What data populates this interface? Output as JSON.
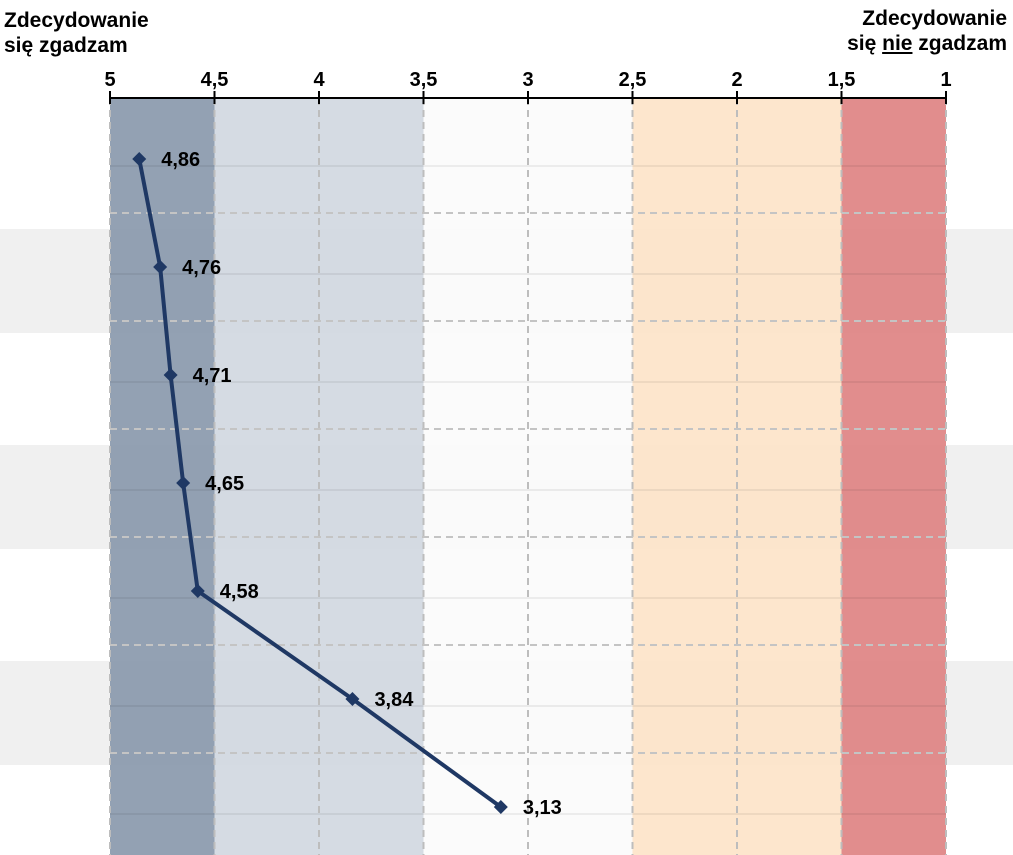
{
  "header": {
    "left_line1": "Zdecydowanie",
    "left_line2": "się zgadzam",
    "right_line1": "Zdecydowanie",
    "right_line2_pre": "się ",
    "right_line2_em": "nie",
    "right_line2_post": " zgadzam"
  },
  "chart_data": {
    "type": "line",
    "orientation": "horizontal",
    "x_axis": {
      "reversed": true,
      "xlim": [
        5,
        1
      ],
      "position": "top",
      "ticks": [
        5,
        4.5,
        4,
        3.5,
        3,
        2.5,
        2,
        1.5,
        1
      ],
      "tick_labels": [
        "5",
        "4,5",
        "4",
        "3,5",
        "3",
        "2,5",
        "2",
        "1,5",
        "1"
      ]
    },
    "zones": [
      {
        "from": 5,
        "to": 4.5,
        "color": "#8494a8"
      },
      {
        "from": 4.5,
        "to": 3.5,
        "color": "#cfd6df"
      },
      {
        "from": 3.5,
        "to": 2.5,
        "color": "#fbfbfb"
      },
      {
        "from": 2.5,
        "to": 1.5,
        "color": "#fde3c6"
      },
      {
        "from": 1.5,
        "to": 1,
        "color": "#dd7d7d"
      }
    ],
    "series": [
      {
        "values": [
          4.86,
          4.76,
          4.71,
          4.65,
          4.58,
          3.84,
          3.13
        ],
        "labels": [
          "4,86",
          "4,76",
          "4,71",
          "4,65",
          "4,58",
          "3,84",
          "3,13"
        ],
        "color": "#1f3864"
      }
    ],
    "grid": true
  }
}
